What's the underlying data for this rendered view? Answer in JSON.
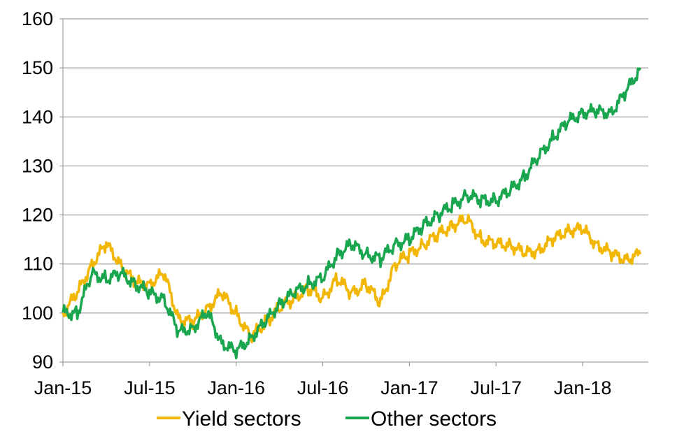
{
  "chart_data": {
    "type": "line",
    "title": "",
    "xlabel": "",
    "ylabel": "",
    "ylim": [
      90,
      160
    ],
    "yticks": [
      90,
      100,
      110,
      120,
      130,
      140,
      150,
      160
    ],
    "xlim": [
      "2015-01",
      "2018-05"
    ],
    "xticks": [
      "Jan-15",
      "Jul-15",
      "Jan-16",
      "Jul-16",
      "Jan-17",
      "Jul-17",
      "Jan-18"
    ],
    "grid": "horizontal",
    "legend_position": "bottom",
    "series": [
      {
        "name": "Yield sectors",
        "color": "#F2B705",
        "x": [
          "2015-01",
          "2015-02",
          "2015-03",
          "2015-04",
          "2015-05",
          "2015-06",
          "2015-07",
          "2015-08",
          "2015-09",
          "2015-10",
          "2015-11",
          "2015-12",
          "2016-01",
          "2016-02",
          "2016-03",
          "2016-04",
          "2016-05",
          "2016-06",
          "2016-07",
          "2016-08",
          "2016-09",
          "2016-10",
          "2016-11",
          "2016-12",
          "2017-01",
          "2017-02",
          "2017-03",
          "2017-04",
          "2017-05",
          "2017-06",
          "2017-07",
          "2017-08",
          "2017-09",
          "2017-10",
          "2017-11",
          "2017-12",
          "2018-01",
          "2018-02",
          "2018-03",
          "2018-04",
          "2018-05"
        ],
        "values": [
          100,
          104,
          110,
          114,
          110,
          106,
          106,
          108,
          99,
          98,
          101,
          104,
          100,
          95,
          98,
          101,
          103,
          105,
          103,
          107,
          104,
          106,
          102,
          110,
          112,
          114,
          116,
          118,
          119,
          115,
          114,
          114,
          112,
          113,
          115,
          117,
          117,
          114,
          112,
          111,
          112
        ]
      },
      {
        "name": "Other sectors",
        "color": "#1AA64F",
        "x": [
          "2015-01",
          "2015-02",
          "2015-03",
          "2015-04",
          "2015-05",
          "2015-06",
          "2015-07",
          "2015-08",
          "2015-09",
          "2015-10",
          "2015-11",
          "2015-12",
          "2016-01",
          "2016-02",
          "2016-03",
          "2016-04",
          "2016-05",
          "2016-06",
          "2016-07",
          "2016-08",
          "2016-09",
          "2016-10",
          "2016-11",
          "2016-12",
          "2017-01",
          "2017-02",
          "2017-03",
          "2017-04",
          "2017-05",
          "2017-06",
          "2017-07",
          "2017-08",
          "2017-09",
          "2017-10",
          "2017-11",
          "2017-12",
          "2018-01",
          "2018-02",
          "2018-03",
          "2018-04",
          "2018-05"
        ],
        "values": [
          100,
          100,
          108,
          107,
          108,
          106,
          104,
          103,
          96,
          97,
          100,
          94,
          92,
          95,
          98,
          102,
          104,
          106,
          107,
          112,
          114,
          112,
          111,
          114,
          115,
          118,
          120,
          122,
          124,
          123,
          123,
          125,
          128,
          132,
          136,
          139,
          141,
          141,
          141,
          145,
          150
        ]
      }
    ]
  }
}
